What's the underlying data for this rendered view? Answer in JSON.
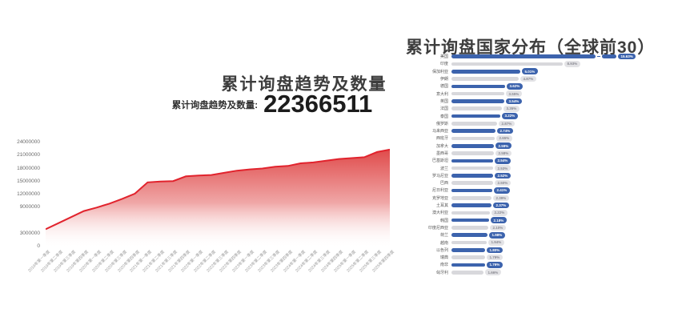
{
  "colors": {
    "trend_line": "#e1232d",
    "trend_fill_top": "#dd3b3b",
    "bar_primary": "#3c63ad",
    "bar_secondary": "#d8d8dc",
    "pill_secondary_bg": "#e3e3e6",
    "pill_secondary_text": "#8a8a92",
    "title_text": "#3d3d3d"
  },
  "chart_data": [
    {
      "type": "area",
      "title": "累计询盘趋势及数量",
      "metric_label": "累计询盘趋势及数量:",
      "metric_value": "22366511",
      "ylim": [
        0,
        24000000
      ],
      "y_ticks": [
        "24000000",
        "21000000",
        "18000000",
        "15000000",
        "12000000",
        "9000000",
        "3000000",
        "0"
      ],
      "grid": false,
      "legend": "none",
      "x": [
        "2019年第一季度",
        "2019年第二季度",
        "2019年第三季度",
        "2019年第四季度",
        "2020年第一季度",
        "2020年第二季度",
        "2020年第三季度",
        "2020年第四季度",
        "2021年第一季度",
        "2021年第二季度",
        "2021年第三季度",
        "2021年第四季度",
        "2022年第一季度",
        "2022年第二季度",
        "2022年第三季度",
        "2022年第四季度",
        "2023年第一季度",
        "2023年第二季度",
        "2023年第三季度",
        "2023年第四季度",
        "2024年第一季度",
        "2024年第二季度",
        "2024年第三季度",
        "2024年第四季度",
        "2025年第一季度",
        "2025年第二季度",
        "2025年第三季度",
        "2025年第四季度"
      ],
      "values": [
        4000000,
        5400000,
        6800000,
        8200000,
        9000000,
        9900000,
        11000000,
        12200000,
        14800000,
        15000000,
        15100000,
        16200000,
        16400000,
        16500000,
        17000000,
        17500000,
        17800000,
        18000000,
        18400000,
        18600000,
        19200000,
        19400000,
        19800000,
        20200000,
        20400000,
        20600000,
        21800000,
        22366511
      ]
    },
    {
      "type": "bar",
      "orientation": "horizontal",
      "title": "累计询盘国家分布（全球前30）",
      "legend": "none",
      "note": "bars alternate blue/gray; top bar (美国) drawn with an axis-break gap",
      "items": [
        {
          "country": "美国",
          "value": 15.63,
          "label": "15.63%",
          "color": "primary",
          "broken": true
        },
        {
          "country": "印度",
          "value": 8.93,
          "label": "8.93%",
          "color": "secondary"
        },
        {
          "country": "保加利亚",
          "value": 5.01,
          "label": "5.01%",
          "color": "primary"
        },
        {
          "country": "伊朗",
          "value": 4.87,
          "label": "4.87%",
          "color": "secondary"
        },
        {
          "country": "德国",
          "value": 3.62,
          "label": "3.62%",
          "color": "primary"
        },
        {
          "country": "意大利",
          "value": 3.55,
          "label": "3.55%",
          "color": "secondary"
        },
        {
          "country": "英国",
          "value": 3.54,
          "label": "3.54%",
          "color": "primary"
        },
        {
          "country": "法国",
          "value": 3.35,
          "label": "3.35%",
          "color": "secondary"
        },
        {
          "country": "泰国",
          "value": 3.22,
          "label": "3.22%",
          "color": "primary"
        },
        {
          "country": "俄罗斯",
          "value": 2.87,
          "label": "2.87%",
          "color": "secondary"
        },
        {
          "country": "马来西亚",
          "value": 2.74,
          "label": "2.74%",
          "color": "primary"
        },
        {
          "country": "西班牙",
          "value": 2.65,
          "label": "2.65%",
          "color": "secondary"
        },
        {
          "country": "加拿大",
          "value": 2.59,
          "label": "2.59%",
          "color": "primary"
        },
        {
          "country": "墨西哥",
          "value": 2.58,
          "label": "2.58%",
          "color": "secondary"
        },
        {
          "country": "巴基斯坦",
          "value": 2.54,
          "label": "2.54%",
          "color": "primary"
        },
        {
          "country": "波兰",
          "value": 2.53,
          "label": "2.53%",
          "color": "secondary"
        },
        {
          "country": "罗马尼亚",
          "value": 2.52,
          "label": "2.52%",
          "color": "primary"
        },
        {
          "country": "巴西",
          "value": 2.5,
          "label": "2.50%",
          "color": "secondary"
        },
        {
          "country": "尼日利亚",
          "value": 2.41,
          "label": "2.41%",
          "color": "primary"
        },
        {
          "country": "克罗地亚",
          "value": 2.39,
          "label": "2.39%",
          "color": "secondary"
        },
        {
          "country": "土耳其",
          "value": 2.37,
          "label": "2.37%",
          "color": "primary"
        },
        {
          "country": "澳大利亚",
          "value": 2.22,
          "label": "2.22%",
          "color": "secondary"
        },
        {
          "country": "韩国",
          "value": 2.18,
          "label": "2.18%",
          "color": "primary"
        },
        {
          "country": "印度尼西亚",
          "value": 2.1,
          "label": "2.10%",
          "color": "secondary"
        },
        {
          "country": "荷兰",
          "value": 1.98,
          "label": "1.98%",
          "color": "primary"
        },
        {
          "country": "越南",
          "value": 1.94,
          "label": "1.94%",
          "color": "secondary"
        },
        {
          "country": "以色列",
          "value": 1.8,
          "label": "1.80%",
          "color": "primary"
        },
        {
          "country": "瑞典",
          "value": 1.79,
          "label": "1.79%",
          "color": "secondary"
        },
        {
          "country": "南非",
          "value": 1.76,
          "label": "1.76%",
          "color": "primary"
        },
        {
          "country": "匈牙利",
          "value": 1.66,
          "label": "1.66%",
          "color": "secondary"
        }
      ]
    }
  ]
}
